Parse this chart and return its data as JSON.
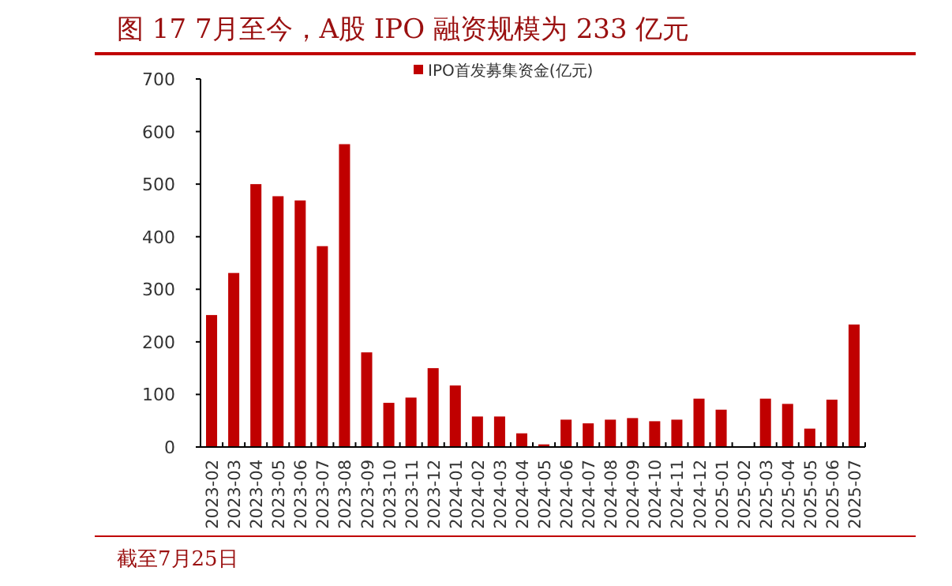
{
  "chart_data": {
    "type": "bar",
    "title": "图 17 7月至今，A股 IPO 融资规模为 233 亿元",
    "categories": [
      "2023-02",
      "2023-03",
      "2023-04",
      "2023-05",
      "2023-06",
      "2023-07",
      "2023-08",
      "2023-09",
      "2023-10",
      "2023-11",
      "2023-12",
      "2024-01",
      "2024-02",
      "2024-03",
      "2024-04",
      "2024-05",
      "2024-06",
      "2024-07",
      "2024-08",
      "2024-09",
      "2024-10",
      "2024-11",
      "2024-12",
      "2025-01",
      "2025-02",
      "2025-03",
      "2025-04",
      "2025-05",
      "2025-06",
      "2025-07"
    ],
    "series": [
      {
        "name": "IPO首发募集资金(亿元)",
        "color": "#c00000",
        "values": [
          251,
          331,
          500,
          477,
          469,
          382,
          576,
          180,
          84,
          94,
          150,
          117,
          58,
          58,
          26,
          5,
          52,
          45,
          52,
          55,
          49,
          52,
          92,
          71,
          0,
          92,
          82,
          35,
          90,
          233
        ]
      }
    ],
    "ylim": [
      0,
      700
    ],
    "yticks": [
      0,
      100,
      200,
      300,
      400,
      500,
      600,
      700
    ],
    "grid": false,
    "legend": "top",
    "annotations": [
      "截至7月25日"
    ]
  }
}
